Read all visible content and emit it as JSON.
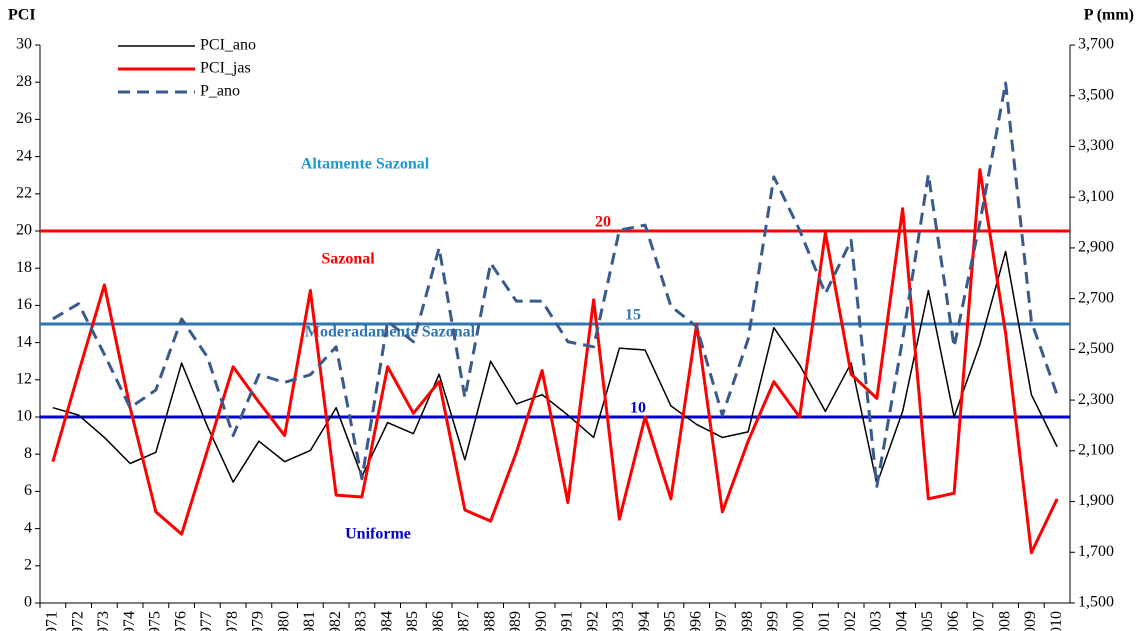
{
  "chart_data": {
    "type": "line",
    "y_label": "PCI",
    "y2_label": "P (mm)",
    "categories": [
      "1971",
      "1972",
      "1973",
      "1974",
      "1975",
      "1976",
      "1977",
      "1978",
      "1979",
      "1980",
      "1981",
      "1982",
      "1983",
      "1984",
      "1985",
      "1986",
      "1987",
      "1988",
      "1989",
      "1990",
      "1991",
      "1992",
      "1993",
      "1994",
      "1995",
      "1996",
      "1997",
      "1998",
      "1999",
      "2000",
      "2001",
      "2002",
      "2003",
      "2004",
      "2005",
      "2006",
      "2007",
      "2008",
      "2009",
      "2010"
    ],
    "series": [
      {
        "name": "PCI_ano",
        "color": "#000000",
        "values": [
          10.5,
          10.1,
          8.9,
          7.5,
          8.1,
          12.9,
          9.5,
          6.5,
          8.7,
          7.6,
          8.2,
          10.5,
          6.8,
          9.7,
          9.1,
          12.3,
          7.7,
          13.0,
          10.7,
          11.2,
          10.1,
          8.9,
          13.7,
          13.6,
          10.6,
          9.6,
          8.9,
          9.2,
          14.8,
          12.8,
          10.3,
          12.9,
          6.4,
          10.3,
          16.8,
          10.0,
          13.9,
          18.9,
          11.2,
          8.4
        ]
      },
      {
        "name": "PCI_jas",
        "color": "#ff0000",
        "values": [
          7.6,
          12.4,
          17.1,
          10.5,
          4.9,
          3.7,
          8.2,
          12.7,
          10.8,
          9.0,
          16.8,
          5.8,
          5.7,
          12.7,
          10.2,
          11.9,
          5.0,
          4.4,
          8.1,
          12.5,
          5.4,
          16.3,
          4.5,
          10.0,
          5.6,
          15.0,
          4.9,
          8.7,
          11.9,
          10.0,
          19.9,
          12.3,
          11.0,
          21.2,
          5.6,
          5.9,
          23.3,
          14.5,
          2.7,
          5.6
        ]
      },
      {
        "name": "P_ano",
        "color": "#3a5a8c",
        "dashed": true,
        "axis": "y2",
        "values": [
          2620,
          2680,
          2480,
          2270,
          2340,
          2620,
          2470,
          2160,
          2400,
          2370,
          2400,
          2510,
          1990,
          2610,
          2530,
          2900,
          2310,
          2840,
          2690,
          2690,
          2530,
          2510,
          2970,
          2990,
          2670,
          2590,
          2240,
          2540,
          3180,
          2970,
          2720,
          2930,
          1960,
          2540,
          3190,
          2510,
          3000,
          3550,
          2610,
          2320
        ]
      }
    ],
    "ylim": [
      0,
      30
    ],
    "yticks": [
      0,
      2,
      4,
      6,
      8,
      10,
      12,
      14,
      16,
      18,
      20,
      22,
      24,
      26,
      28,
      30
    ],
    "y2lim": [
      1500,
      3700
    ],
    "y2ticks": [
      {
        "value": 1500,
        "label": "1,500"
      },
      {
        "value": 1700,
        "label": "1,700"
      },
      {
        "value": 1900,
        "label": "1,900"
      },
      {
        "value": 2100,
        "label": "2,100"
      },
      {
        "value": 2300,
        "label": "2,300"
      },
      {
        "value": 2500,
        "label": "2,500"
      },
      {
        "value": 2700,
        "label": "2,700"
      },
      {
        "value": 2900,
        "label": "2,900"
      },
      {
        "value": 3100,
        "label": "3,100"
      },
      {
        "value": 3300,
        "label": "3,300"
      },
      {
        "value": 3500,
        "label": "3,500"
      },
      {
        "value": 3700,
        "label": "3,700"
      }
    ],
    "thresholds": [
      {
        "value": 20,
        "color": "#ff0000"
      },
      {
        "value": 15,
        "color": "#2e75b6"
      },
      {
        "value": 10,
        "color": "#0000cc"
      }
    ],
    "annotations": [
      {
        "text": "Altamente Sazonal",
        "color": "#1a9ad6"
      },
      {
        "text": "Sazonal",
        "color": "#ff0000"
      },
      {
        "text": "Moderadamente Sazonal",
        "color": "#2e75b6"
      },
      {
        "text": "Uniforme",
        "color": "#0000cc"
      }
    ],
    "legend": "upper left"
  }
}
